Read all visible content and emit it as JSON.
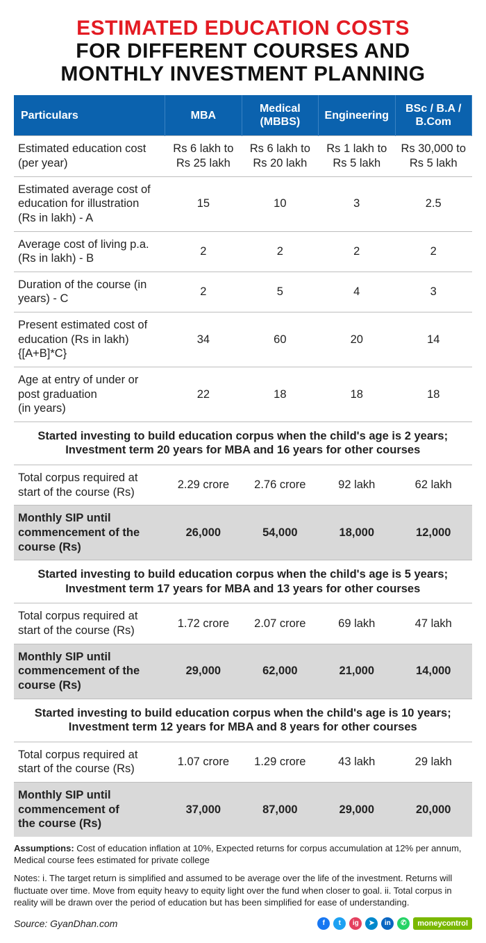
{
  "title": {
    "line1": "ESTIMATED EDUCATION COSTS",
    "line2": "FOR DIFFERENT COURSES AND",
    "line3": "MONTHLY INVESTMENT PLANNING"
  },
  "colors": {
    "title_accent": "#e31b23",
    "title_main": "#111111",
    "header_bg": "#0b62ae",
    "header_text": "#ffffff",
    "row_border": "#bdbdbd",
    "sip_bg": "#d9d9d9",
    "badge_bg": "#7ab800"
  },
  "columns": [
    "Particulars",
    "MBA",
    "Medical (MBBS)",
    "Engineering",
    "BSc / B.A / B.Com"
  ],
  "rows_top": [
    {
      "label": "Estimated education cost (per year)",
      "cells": [
        "Rs 6 lakh to Rs 25 lakh",
        "Rs 6 lakh to Rs 20 lakh",
        "Rs 1 lakh to Rs 5 lakh",
        "Rs 30,000 to Rs 5 lakh"
      ]
    },
    {
      "label": "Estimated average cost of education for illustration\n(Rs in lakh) - A",
      "cells": [
        "15",
        "10",
        "3",
        "2.5"
      ]
    },
    {
      "label": "Average cost of living p.a. (Rs in lakh) - B",
      "cells": [
        "2",
        "2",
        "2",
        "2"
      ]
    },
    {
      "label": "Duration of the course (in years) - C",
      "cells": [
        "2",
        "5",
        "4",
        "3"
      ]
    },
    {
      "label": "Present estimated cost of education (Rs in lakh) {[A+B]*C}",
      "cells": [
        "34",
        "60",
        "20",
        "14"
      ]
    },
    {
      "label": "Age at entry of under or post graduation\n(in years)",
      "cells": [
        "22",
        "18",
        "18",
        "18"
      ]
    }
  ],
  "scenarios": [
    {
      "heading": "Started investing to build education corpus when the child's age is 2 years;\nInvestment term 20 years for MBA and 16 years for other courses",
      "corpus_label": "Total corpus required at start of the course (Rs)",
      "corpus": [
        "2.29 crore",
        "2.76 crore",
        "92 lakh",
        "62 lakh"
      ],
      "sip_label": "Monthly SIP until commencement of the course (Rs)",
      "sip": [
        "26,000",
        "54,000",
        "18,000",
        "12,000"
      ]
    },
    {
      "heading": "Started investing to build education corpus when the child's age is 5 years;\nInvestment term 17 years for MBA and 13 years for other courses",
      "corpus_label": "Total corpus required at start of the course (Rs)",
      "corpus": [
        "1.72 crore",
        "2.07 crore",
        "69 lakh",
        "47 lakh"
      ],
      "sip_label": "Monthly SIP until commencement of the course (Rs)",
      "sip": [
        "29,000",
        "62,000",
        "21,000",
        "14,000"
      ]
    },
    {
      "heading": "Started investing to build education corpus when the child's age is 10 years;\nInvestment term 12 years for MBA and 8 years for other courses",
      "corpus_label": "Total corpus required at start of the course (Rs)",
      "corpus": [
        "1.07 crore",
        "1.29 crore",
        "43 lakh",
        "29 lakh"
      ],
      "sip_label": "Monthly SIP until commencement of\nthe course (Rs)",
      "sip": [
        "37,000",
        "87,000",
        "29,000",
        "20,000"
      ]
    }
  ],
  "assumptions_label": "Assumptions:",
  "assumptions_text": " Cost of education inflation at 10%, Expected returns for corpus accumulation at 12% per annum, Medical course fees estimated for private college",
  "notes": "Notes: i. The target return is simplified and assumed to be average over the life of the investment. Returns will fluctuate over time. Move from equity heavy to equity light over the fund when closer to goal. ii. Total corpus in reality will be drawn over the period of education but has been simplified for ease of understanding.",
  "source_label": "Source: ",
  "source_value": "GyanDhan.com",
  "social_icons": [
    {
      "name": "facebook",
      "bg": "#1877f2",
      "glyph": "f"
    },
    {
      "name": "twitter",
      "bg": "#1da1f2",
      "glyph": "t"
    },
    {
      "name": "instagram",
      "bg": "#e4405f",
      "glyph": "ig"
    },
    {
      "name": "telegram",
      "bg": "#0088cc",
      "glyph": "➤"
    },
    {
      "name": "linkedin",
      "bg": "#0a66c2",
      "glyph": "in"
    },
    {
      "name": "whatsapp",
      "bg": "#25d366",
      "glyph": "✆"
    }
  ],
  "brand_badge": "moneycontrol"
}
